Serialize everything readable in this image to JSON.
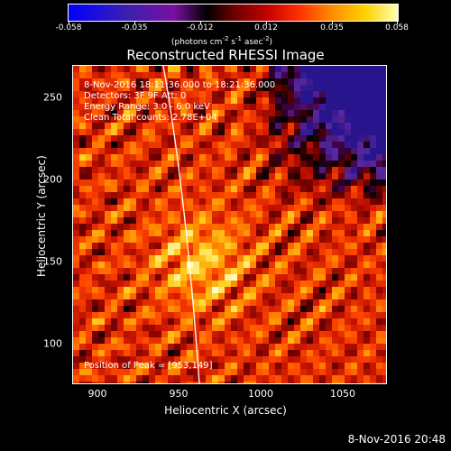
{
  "colorbar": {
    "ticks": [
      "-0.058",
      "-0.035",
      "-0.012",
      "0.012",
      "0.035",
      "0.058"
    ],
    "unit_main": "(photons cm",
    "unit_exp1": "-2",
    "unit_mid": " s",
    "unit_exp2": "-1",
    "unit_mid2": " asec",
    "unit_exp3": "-2",
    "unit_end": ")"
  },
  "title": "Reconstructed RHESSI Image",
  "info": {
    "time": "8-Nov-2016 18:11:36.000 to 18:21:36.000",
    "detectors": "Detectors: 3F 9F  Att: 0",
    "energy": "Energy Range: 3.0 - 6.0 keV",
    "method": "Clean     Total counts: 2.78E+04",
    "peak": "Position of Peak = [953,149]"
  },
  "axes": {
    "xlabel": "Heliocentric X (arcsec)",
    "ylabel": "Heliocentric Y (arcsec)",
    "xticks": [
      "900",
      "950",
      "1000",
      "1050"
    ],
    "yticks": [
      "250",
      "200",
      "150",
      "100"
    ],
    "xrange": [
      882,
      1075
    ],
    "yrange": [
      78,
      270
    ]
  },
  "timestamp": "8-Nov-2016 20:48",
  "colors": {
    "limb": "#ffffff"
  }
}
